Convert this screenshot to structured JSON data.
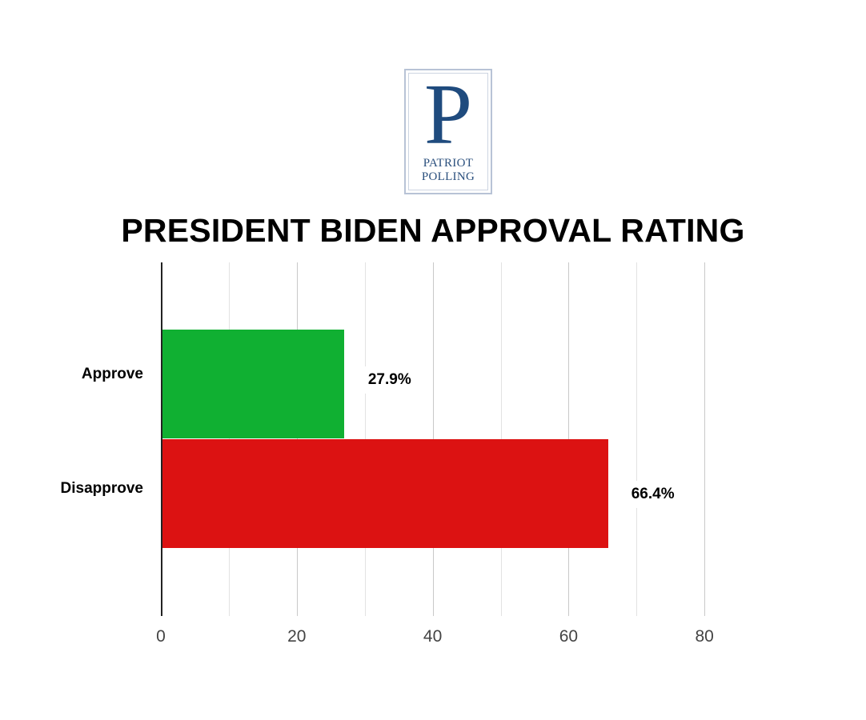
{
  "logo": {
    "letter": "P",
    "line1": "PATRIOT",
    "line2": "POLLING"
  },
  "chart_data": {
    "type": "bar",
    "orientation": "horizontal",
    "title": "PRESIDENT BIDEN APPROVAL RATING",
    "categories": [
      "Approve",
      "Disapprove"
    ],
    "values": [
      27.9,
      66.4
    ],
    "value_labels": [
      "27.9%",
      "66.4%"
    ],
    "colors": [
      "#10b032",
      "#dc1212"
    ],
    "xlabel": "",
    "ylabel": "",
    "xlim": [
      0,
      85
    ],
    "xticks": [
      0,
      20,
      40,
      60,
      80
    ],
    "xtick_labels": [
      "0",
      "20",
      "40",
      "60",
      "80"
    ],
    "grid": true,
    "grid_step": 10,
    "legend": "none"
  }
}
